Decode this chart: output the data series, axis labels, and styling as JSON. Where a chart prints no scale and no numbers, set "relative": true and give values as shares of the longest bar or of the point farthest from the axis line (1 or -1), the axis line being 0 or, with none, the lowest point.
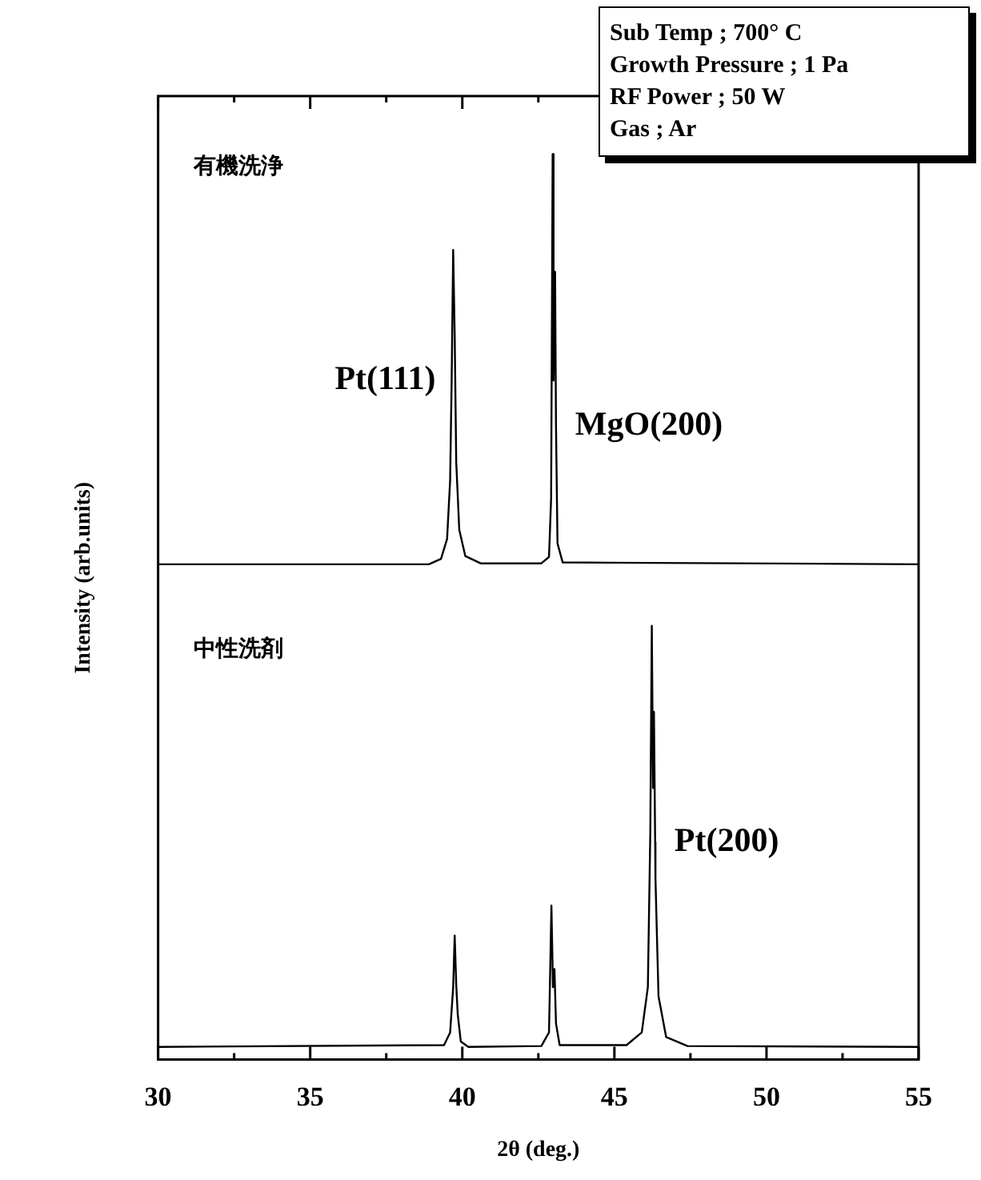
{
  "chart_data": {
    "type": "line",
    "relative": true,
    "xlabel": "2θ (deg.)",
    "ylabel": "Intensity (arb.units)",
    "xlim": [
      30,
      55
    ],
    "xticks": [
      30,
      {
        "value": 32.5,
        "label": null
      },
      35,
      {
        "value": 37.5,
        "label": null
      },
      40,
      {
        "value": 42.5,
        "label": null
      },
      45,
      {
        "value": 47.5,
        "label": null
      },
      50,
      {
        "value": 52.5,
        "label": null
      },
      55
    ],
    "grid": false,
    "legend": false,
    "marker": "none",
    "line_style": "solid",
    "series": [
      {
        "color": "#000000",
        "x": [
          30,
          38.9,
          39.3,
          39.5,
          39.6,
          39.65,
          39.7,
          39.75,
          39.8,
          39.9,
          40.1,
          40.6,
          42.6,
          42.85,
          42.92,
          42.97,
          43.0,
          43.05,
          43.08,
          43.13,
          43.3,
          55
        ],
        "values": [
          0.547,
          0.547,
          0.553,
          0.575,
          0.64,
          0.75,
          0.894,
          0.8,
          0.66,
          0.585,
          0.556,
          0.548,
          0.548,
          0.555,
          0.62,
          1.0,
          0.75,
          0.87,
          0.7,
          0.57,
          0.549,
          0.547
        ]
      },
      {
        "color": "#000000",
        "x": [
          30,
          39.4,
          39.6,
          39.7,
          39.75,
          39.8,
          39.85,
          39.95,
          40.2,
          42.6,
          42.85,
          42.93,
          42.98,
          43.03,
          43.08,
          43.2,
          45.4,
          45.9,
          46.1,
          46.18,
          46.23,
          46.27,
          46.3,
          46.34,
          46.35,
          46.45,
          46.7,
          47.4,
          55
        ],
        "values": [
          0.014,
          0.016,
          0.03,
          0.08,
          0.137,
          0.083,
          0.05,
          0.02,
          0.014,
          0.015,
          0.03,
          0.17,
          0.08,
          0.1,
          0.04,
          0.016,
          0.016,
          0.03,
          0.08,
          0.25,
          0.479,
          0.3,
          0.384,
          0.24,
          0.2,
          0.07,
          0.025,
          0.015,
          0.014
        ]
      }
    ],
    "annotations": [
      "有機洗浄",
      "中性洗剤",
      {
        "text": "Pt(111)",
        "x": 39.65,
        "y": 0.75
      },
      {
        "text": "MgO(200)",
        "x": 43.08,
        "y": 0.7
      },
      {
        "text": "Pt(200)",
        "x": 46.34,
        "y": 0.24
      },
      "Sub Temp ; 700° C",
      "Growth Pressure ; 1 Pa",
      "RF Power ; 50 W",
      "Gas ; Ar"
    ]
  }
}
